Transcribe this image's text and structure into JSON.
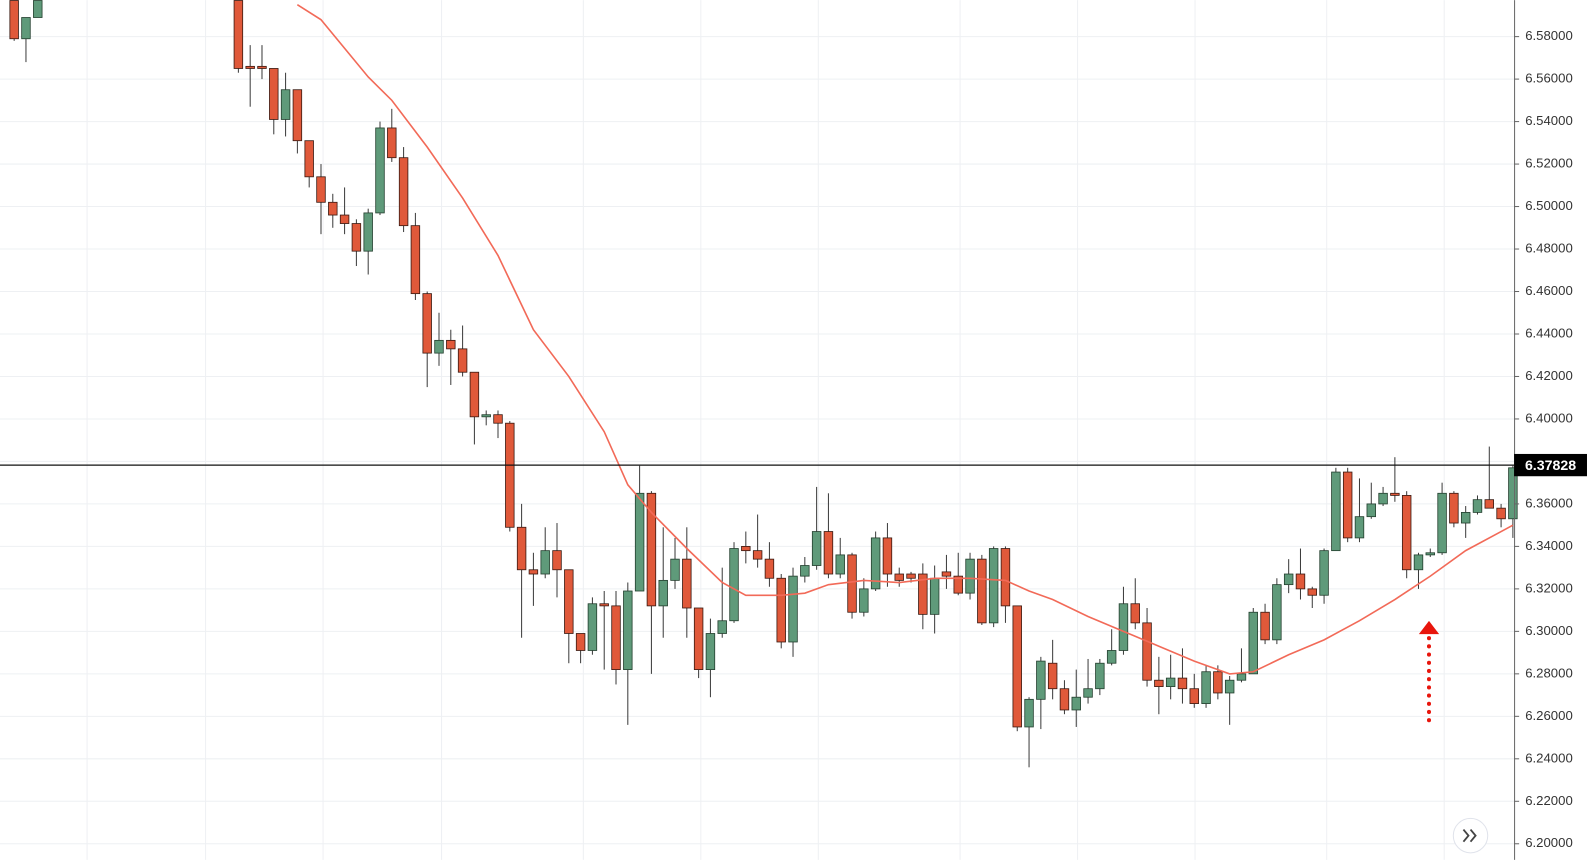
{
  "chart_data": {
    "type": "candlestick",
    "xlim": [
      -1.2,
      127.1
    ],
    "ylim": [
      6.1924,
      6.5972
    ],
    "yticks": [
      {
        "value": 6.2,
        "label": "6.20000"
      },
      {
        "value": 6.22,
        "label": "6.22000"
      },
      {
        "value": 6.24,
        "label": "6.24000"
      },
      {
        "value": 6.26,
        "label": "6.26000"
      },
      {
        "value": 6.28,
        "label": "6.28000"
      },
      {
        "value": 6.3,
        "label": "6.30000"
      },
      {
        "value": 6.32,
        "label": "6.32000"
      },
      {
        "value": 6.34,
        "label": "6.34000"
      },
      {
        "value": 6.36,
        "label": "6.36000"
      },
      {
        "value": 6.38,
        "label": "6.38000"
      },
      {
        "value": 6.4,
        "label": "6.40000"
      },
      {
        "value": 6.42,
        "label": "6.42000"
      },
      {
        "value": 6.44,
        "label": "6.44000"
      },
      {
        "value": 6.46,
        "label": "6.46000"
      },
      {
        "value": 6.48,
        "label": "6.48000"
      },
      {
        "value": 6.5,
        "label": "6.50000"
      },
      {
        "value": 6.52,
        "label": "6.52000"
      },
      {
        "value": 6.54,
        "label": "6.54000"
      },
      {
        "value": 6.56,
        "label": "6.56000"
      },
      {
        "value": 6.58,
        "label": "6.58000"
      }
    ],
    "grid": true,
    "rising_color": "#5f9a7a",
    "falling_color": "#e0593a",
    "open": [
      6.597,
      6.579,
      6.589,
      null,
      null,
      null,
      null,
      null,
      null,
      null,
      null,
      null,
      null,
      null,
      null,
      null,
      null,
      null,
      null,
      6.597,
      6.566,
      6.566,
      6.565,
      6.541,
      6.555,
      6.531,
      6.514,
      6.502,
      6.496,
      6.492,
      6.479,
      6.497,
      6.537,
      6.523,
      6.491,
      6.459,
      6.431,
      6.437,
      6.433,
      6.422,
      6.401,
      6.402,
      6.398,
      6.349,
      6.329,
      6.327,
      6.338,
      6.329,
      6.299,
      6.291,
      6.313,
      6.312,
      6.282,
      6.319,
      6.365,
      6.312,
      6.324,
      6.334,
      6.311,
      6.282,
      6.299,
      6.305,
      6.34,
      6.338,
      6.334,
      6.325,
      6.295,
      6.326,
      6.331,
      6.347,
      6.327,
      6.336,
      6.309,
      6.32,
      6.344,
      6.327,
      6.327,
      6.327,
      6.308,
      6.328,
      6.326,
      6.318,
      6.334,
      6.304,
      6.339,
      6.312,
      6.255,
      6.268,
      6.285,
      6.273,
      6.263,
      6.269,
      6.273,
      6.285,
      6.291,
      6.313,
      6.304,
      6.277,
      6.274,
      6.278,
      6.273,
      6.266,
      6.281,
      6.271,
      6.277,
      6.28,
      6.309,
      6.296,
      6.322,
      6.327,
      6.32,
      6.317,
      6.338,
      6.375,
      6.344,
      6.354,
      6.36,
      6.365,
      6.364,
      6.329,
      6.336,
      6.337,
      6.365,
      6.351,
      6.356,
      6.362,
      6.358,
      6.353
    ],
    "high": [
      6.597,
      6.589,
      6.597,
      null,
      null,
      null,
      null,
      null,
      null,
      null,
      null,
      null,
      null,
      null,
      null,
      null,
      null,
      null,
      null,
      6.597,
      6.576,
      6.576,
      6.565,
      6.563,
      6.555,
      6.531,
      6.52,
      6.506,
      6.509,
      6.494,
      6.499,
      6.54,
      6.546,
      6.528,
      6.497,
      6.46,
      6.45,
      6.442,
      6.444,
      6.422,
      6.404,
      6.404,
      6.399,
      6.36,
      6.337,
      6.349,
      6.351,
      6.329,
      6.299,
      6.316,
      6.319,
      6.319,
      6.323,
      6.378,
      6.366,
      6.349,
      6.344,
      6.349,
      6.311,
      6.306,
      6.33,
      6.342,
      6.347,
      6.355,
      6.342,
      6.327,
      6.33,
      6.335,
      6.368,
      6.365,
      6.344,
      6.337,
      6.325,
      6.347,
      6.351,
      6.33,
      6.328,
      6.332,
      6.331,
      6.336,
      6.337,
      6.337,
      6.336,
      6.34,
      6.34,
      6.312,
      6.269,
      6.288,
      6.296,
      6.277,
      6.282,
      6.287,
      6.287,
      6.301,
      6.321,
      6.325,
      6.311,
      6.288,
      6.289,
      6.292,
      6.28,
      6.284,
      6.284,
      6.279,
      6.292,
      6.311,
      6.313,
      6.325,
      6.334,
      6.339,
      6.321,
      6.339,
      6.377,
      6.377,
      6.372,
      6.37,
      6.368,
      6.382,
      6.366,
      6.337,
      6.339,
      6.37,
      6.366,
      6.359,
      6.364,
      6.387,
      6.36,
      6.378
    ],
    "low": [
      6.578,
      6.568,
      6.589,
      null,
      null,
      null,
      null,
      null,
      null,
      null,
      null,
      null,
      null,
      null,
      null,
      null,
      null,
      null,
      null,
      6.563,
      6.547,
      6.56,
      6.534,
      6.533,
      6.525,
      6.509,
      6.487,
      6.49,
      6.487,
      6.472,
      6.468,
      6.496,
      6.521,
      6.488,
      6.456,
      6.415,
      6.425,
      6.416,
      6.42,
      6.388,
      6.397,
      6.391,
      6.347,
      6.297,
      6.312,
      6.325,
      6.316,
      6.285,
      6.285,
      6.289,
      6.282,
      6.275,
      6.256,
      6.319,
      6.28,
      6.297,
      6.32,
      6.297,
      6.278,
      6.269,
      6.297,
      6.304,
      6.332,
      6.33,
      6.321,
      6.292,
      6.288,
      6.323,
      6.329,
      6.325,
      6.325,
      6.306,
      6.307,
      6.319,
      6.321,
      6.321,
      6.323,
      6.301,
      6.299,
      6.32,
      6.317,
      6.315,
      6.303,
      6.302,
      6.304,
      6.253,
      6.236,
      6.254,
      6.268,
      6.261,
      6.255,
      6.266,
      6.27,
      6.284,
      6.289,
      6.301,
      6.274,
      6.261,
      6.268,
      6.266,
      6.264,
      6.264,
      6.268,
      6.256,
      6.276,
      6.28,
      6.294,
      6.294,
      6.318,
      6.315,
      6.311,
      6.313,
      6.338,
      6.342,
      6.342,
      6.353,
      6.359,
      6.361,
      6.325,
      6.32,
      6.335,
      6.336,
      6.349,
      6.344,
      6.355,
      6.358,
      6.349,
      6.344
    ],
    "close": [
      6.579,
      6.589,
      6.597,
      null,
      null,
      null,
      null,
      null,
      null,
      null,
      null,
      null,
      null,
      null,
      null,
      null,
      null,
      null,
      null,
      6.565,
      6.565,
      6.565,
      6.541,
      6.555,
      6.531,
      6.514,
      6.502,
      6.496,
      6.492,
      6.479,
      6.497,
      6.537,
      6.523,
      6.491,
      6.459,
      6.431,
      6.437,
      6.433,
      6.422,
      6.401,
      6.402,
      6.398,
      6.349,
      6.329,
      6.327,
      6.338,
      6.329,
      6.299,
      6.291,
      6.313,
      6.312,
      6.282,
      6.319,
      6.365,
      6.312,
      6.324,
      6.334,
      6.311,
      6.282,
      6.299,
      6.305,
      6.339,
      6.338,
      6.334,
      6.325,
      6.295,
      6.326,
      6.331,
      6.347,
      6.327,
      6.336,
      6.309,
      6.32,
      6.344,
      6.327,
      6.324,
      6.325,
      6.308,
      6.325,
      6.326,
      6.318,
      6.334,
      6.304,
      6.339,
      6.312,
      6.255,
      6.268,
      6.286,
      6.273,
      6.263,
      6.269,
      6.273,
      6.285,
      6.291,
      6.313,
      6.304,
      6.277,
      6.274,
      6.278,
      6.273,
      6.266,
      6.281,
      6.271,
      6.277,
      6.28,
      6.309,
      6.296,
      6.322,
      6.327,
      6.32,
      6.317,
      6.338,
      6.375,
      6.344,
      6.354,
      6.36,
      6.365,
      6.364,
      6.329,
      6.336,
      6.337,
      6.365,
      6.351,
      6.356,
      6.362,
      6.358,
      6.353,
      6.377
    ],
    "line": {
      "color": "#f26a58",
      "x": [
        24,
        26,
        30,
        32,
        35,
        38,
        41,
        44,
        47,
        50,
        52,
        54,
        57,
        60,
        62,
        65,
        67,
        69,
        72,
        75,
        78,
        81,
        84,
        86,
        88,
        91,
        94,
        97,
        100,
        103,
        105,
        108,
        111,
        114,
        117,
        120,
        123,
        126,
        127
      ],
      "values": [
        6.595,
        6.588,
        6.561,
        6.55,
        6.528,
        6.504,
        6.477,
        6.442,
        6.42,
        6.394,
        6.369,
        6.356,
        6.339,
        6.323,
        6.317,
        6.317,
        6.318,
        6.322,
        6.324,
        6.323,
        6.325,
        6.325,
        6.324,
        6.319,
        6.315,
        6.307,
        6.3,
        6.293,
        6.286,
        6.28,
        6.281,
        6.289,
        6.296,
        6.305,
        6.315,
        6.326,
        6.338,
        6.347,
        6.35
      ]
    },
    "last_price": 6.37828
  }
}
